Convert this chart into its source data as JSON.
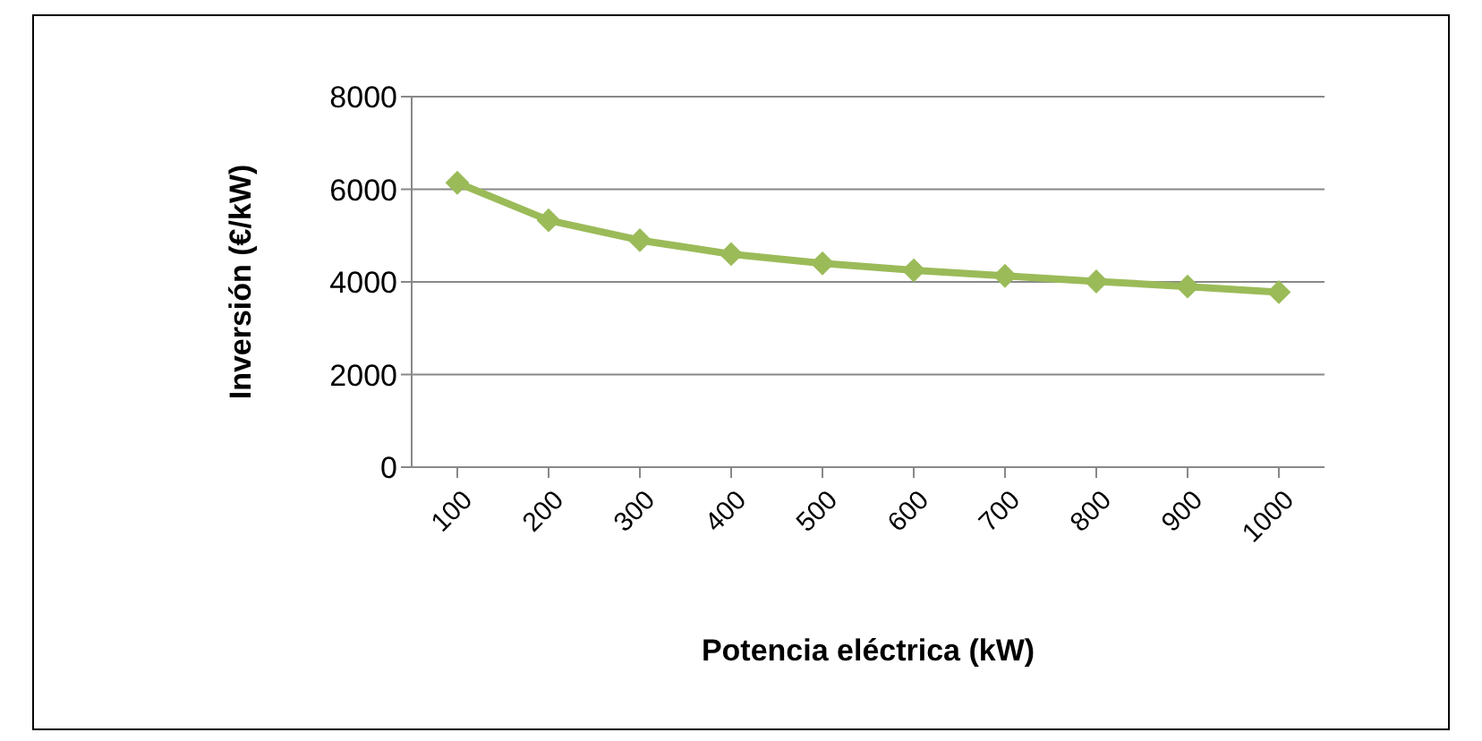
{
  "chart_data": {
    "type": "line",
    "xlabel": "Potencia eléctrica (kW)",
    "ylabel": "Inversión (€/kW)",
    "categories": [
      "100",
      "200",
      "300",
      "400",
      "500",
      "600",
      "700",
      "800",
      "900",
      "1000"
    ],
    "series": [
      {
        "color": "#9bbb59",
        "values": [
          6140,
          5330,
          4900,
          4600,
          4400,
          4250,
          4130,
          4010,
          3900,
          3780
        ]
      }
    ],
    "ylim": [
      0,
      8000
    ],
    "yticks": [
      0,
      2000,
      4000,
      6000,
      8000
    ],
    "grid": "y",
    "legend": false,
    "marker": "diamond",
    "line_style": "solid"
  }
}
